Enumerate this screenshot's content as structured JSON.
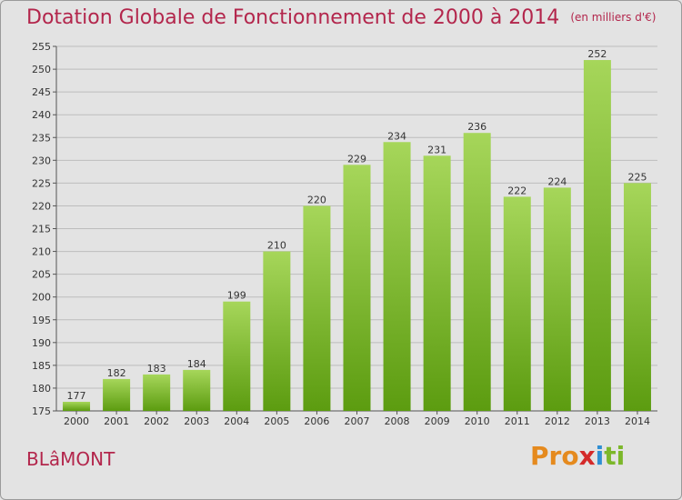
{
  "title": "Dotation Globale de Fonctionnement de 2000 à 2014",
  "subtitle": "(en milliers d'€)",
  "commune": "BLâMONT",
  "logo": [
    "Pro",
    "x",
    "i",
    "ti"
  ],
  "colors": {
    "title": "#b3264c",
    "bar_light": "#a6d65a",
    "bar_dark": "#5c9c10",
    "background": "#e3e3e3",
    "grid": "#bdbdbd"
  },
  "chart_data": {
    "type": "bar",
    "categories": [
      "2000",
      "2001",
      "2002",
      "2003",
      "2004",
      "2005",
      "2006",
      "2007",
      "2008",
      "2009",
      "2010",
      "2011",
      "2012",
      "2013",
      "2014"
    ],
    "values": [
      177,
      182,
      183,
      184,
      199,
      210,
      220,
      229,
      234,
      231,
      236,
      222,
      224,
      252,
      225
    ],
    "ylim": [
      175,
      255
    ],
    "yticks": [
      175,
      180,
      185,
      190,
      195,
      200,
      205,
      210,
      215,
      220,
      225,
      230,
      235,
      240,
      245,
      250,
      255
    ],
    "grid": true,
    "xlabel": "",
    "ylabel": ""
  }
}
